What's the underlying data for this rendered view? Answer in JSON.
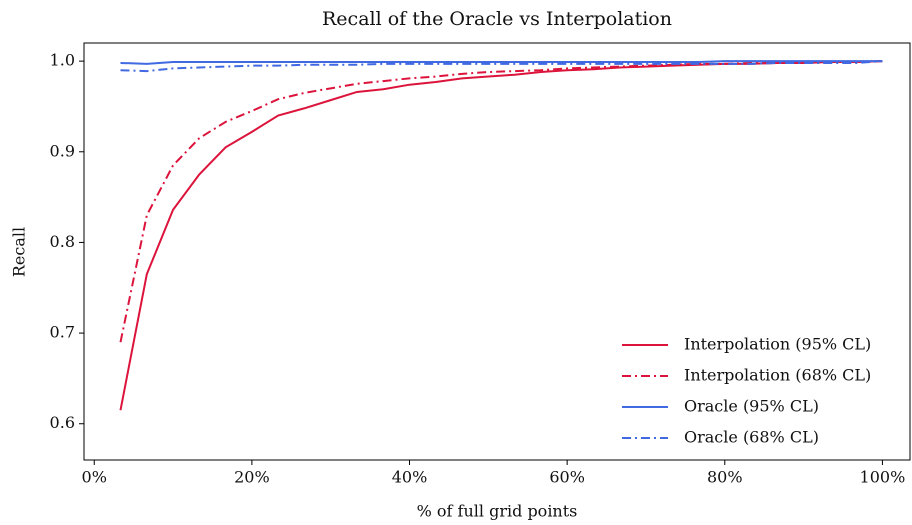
{
  "chart_data": {
    "type": "line",
    "title": "Recall of the Oracle vs Interpolation",
    "xlabel": "% of full grid points",
    "ylabel": "Recall",
    "x": [
      3.33,
      6.67,
      10,
      13.33,
      16.67,
      20,
      23.33,
      26.67,
      30,
      33.33,
      36.67,
      40,
      43.33,
      46.67,
      50,
      53.33,
      56.67,
      60,
      63.33,
      66.67,
      70,
      73.33,
      76.67,
      80,
      83.33,
      86.67,
      90,
      93.33,
      96.67,
      100
    ],
    "series": [
      {
        "name": "Interpolation (95% CL)",
        "color": "#dc143c",
        "style": "solid",
        "values": [
          0.615,
          0.765,
          0.836,
          0.875,
          0.905,
          0.922,
          0.94,
          0.948,
          0.957,
          0.966,
          0.969,
          0.974,
          0.977,
          0.981,
          0.983,
          0.985,
          0.988,
          0.99,
          0.991,
          0.993,
          0.994,
          0.995,
          0.996,
          0.997,
          0.997,
          0.998,
          0.998,
          0.999,
          0.999,
          1.0
        ]
      },
      {
        "name": "Interpolation (68% CL)",
        "color": "#dc143c",
        "style": "dashdot",
        "values": [
          0.69,
          0.83,
          0.885,
          0.915,
          0.933,
          0.945,
          0.958,
          0.965,
          0.97,
          0.975,
          0.978,
          0.981,
          0.983,
          0.986,
          0.988,
          0.989,
          0.99,
          0.992,
          0.993,
          0.994,
          0.995,
          0.996,
          0.997,
          0.997,
          0.998,
          0.998,
          0.999,
          0.999,
          0.999,
          1.0
        ]
      },
      {
        "name": "Oracle (95% CL)",
        "color": "#4169e1",
        "style": "solid",
        "values": [
          0.998,
          0.997,
          0.999,
          0.999,
          0.999,
          0.999,
          0.999,
          0.999,
          0.999,
          0.999,
          0.999,
          0.999,
          0.999,
          0.999,
          0.999,
          0.999,
          0.999,
          0.999,
          0.999,
          0.999,
          0.999,
          0.999,
          0.999,
          1.0,
          1.0,
          1.0,
          1.0,
          1.0,
          1.0,
          1.0
        ]
      },
      {
        "name": "Oracle (68% CL)",
        "color": "#4169e1",
        "style": "dashdot",
        "values": [
          0.99,
          0.989,
          0.992,
          0.993,
          0.994,
          0.995,
          0.995,
          0.996,
          0.996,
          0.996,
          0.997,
          0.997,
          0.997,
          0.997,
          0.997,
          0.997,
          0.997,
          0.997,
          0.997,
          0.997,
          0.997,
          0.997,
          0.997,
          0.997,
          0.997,
          0.998,
          0.998,
          0.998,
          0.998,
          1.0
        ]
      }
    ],
    "xlim": [
      -1.3,
      103.5
    ],
    "ylim": [
      0.56,
      1.02
    ],
    "xticks": [
      {
        "value": 0,
        "label": "0%"
      },
      {
        "value": 20,
        "label": "20%"
      },
      {
        "value": 40,
        "label": "40%"
      },
      {
        "value": 60,
        "label": "60%"
      },
      {
        "value": 80,
        "label": "80%"
      },
      {
        "value": 100,
        "label": "100%"
      }
    ],
    "yticks": [
      0.6,
      0.7,
      0.8,
      0.9,
      {
        "value": 1.0,
        "label": "1.0"
      }
    ],
    "grid": false,
    "legend": "lower right"
  }
}
